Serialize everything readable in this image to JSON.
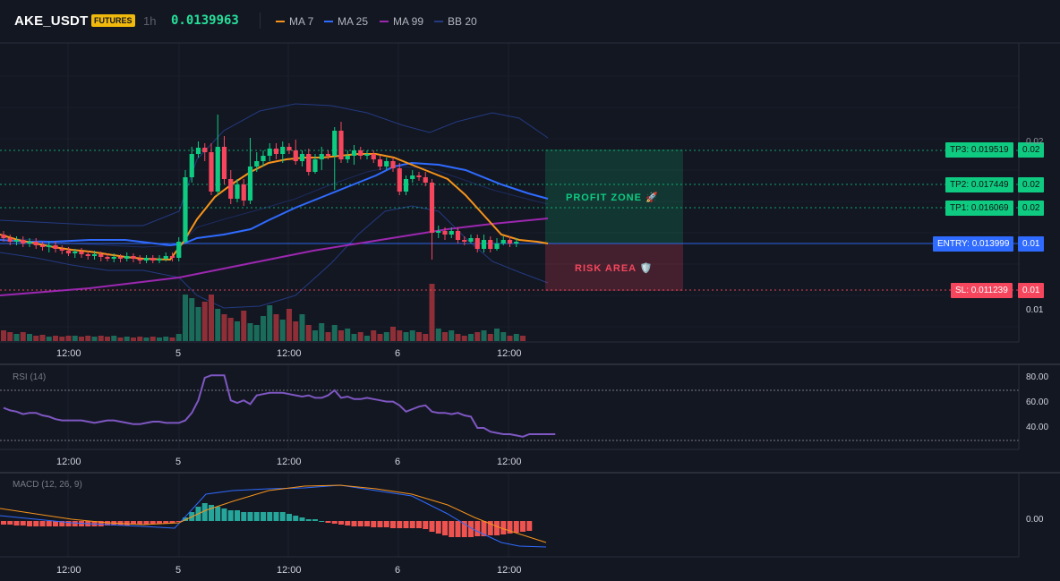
{
  "header": {
    "symbol": "AKE_USDT",
    "market_badge": "FUTURES",
    "interval": "1h",
    "last_price": "0.0139963",
    "indicators": [
      {
        "label": "MA 7",
        "color": "#f7931a"
      },
      {
        "label": "MA 25",
        "color": "#2f6bff"
      },
      {
        "label": "MA 99",
        "color": "#9c27b0"
      },
      {
        "label": "BB 20",
        "color": "#1e3a8a"
      }
    ]
  },
  "zones": {
    "profit_label": "PROFIT ZONE 🚀",
    "risk_label": "RISK AREA 🛡️"
  },
  "levels": {
    "tp3": "TP3: 0.019519",
    "tp2": "TP2: 0.017449",
    "tp1": "TP1: 0.016069",
    "entry": "ENTRY: 0.013999",
    "sl": "SL: 0.011239"
  },
  "price_axis": {
    "tp3_tick": "0.02",
    "tp2_tick": "0.02",
    "tp1_tick": "0.02",
    "entry_tick": "0.01",
    "sl_tick": "0.01",
    "top_tick": "0.02",
    "low_tick": "0.01"
  },
  "rsi": {
    "title": "RSI (14)",
    "ticks": [
      "80.00",
      "60.00",
      "40.00"
    ],
    "values": [
      56,
      54,
      53,
      51,
      52,
      52,
      50,
      49,
      47,
      46,
      46,
      46,
      46,
      45,
      44,
      45,
      46,
      46,
      45,
      44,
      43,
      43,
      44,
      45,
      45,
      44,
      44,
      44,
      46,
      52,
      62,
      80,
      82,
      82,
      82,
      62,
      60,
      62,
      59,
      66,
      67,
      68,
      68,
      68,
      67,
      66,
      65,
      66,
      64,
      64,
      66,
      70,
      64,
      65,
      63,
      63,
      64,
      63,
      62,
      61,
      61,
      58,
      53,
      55,
      57,
      58,
      53,
      52,
      52,
      51,
      52,
      50,
      49,
      40,
      40,
      37,
      36,
      35,
      35,
      34,
      33,
      35,
      35,
      35,
      35,
      35
    ]
  },
  "macd": {
    "title": "MACD (12, 26, 9)",
    "tick": "0.00"
  },
  "time_axis": [
    "12:00",
    "5",
    "12:00",
    "6",
    "12:00"
  ],
  "colors": {
    "up": "#0ecb81",
    "down": "#f6465d",
    "vol_up": "#1b6b5a",
    "vol_down": "#8e2f38",
    "ma7": "#f7931a",
    "ma25": "#2f6bff",
    "ma99": "#9c27b0",
    "bb": "#233a80",
    "rsi": "#7e57c2",
    "macd_line": "#2f6bff",
    "signal_line": "#f7931a",
    "hist_up": "#26a69a",
    "hist_down": "#ef5350",
    "tp": "#0ecb81",
    "entry": "#2f6bff",
    "sl": "#f6465d"
  }
}
